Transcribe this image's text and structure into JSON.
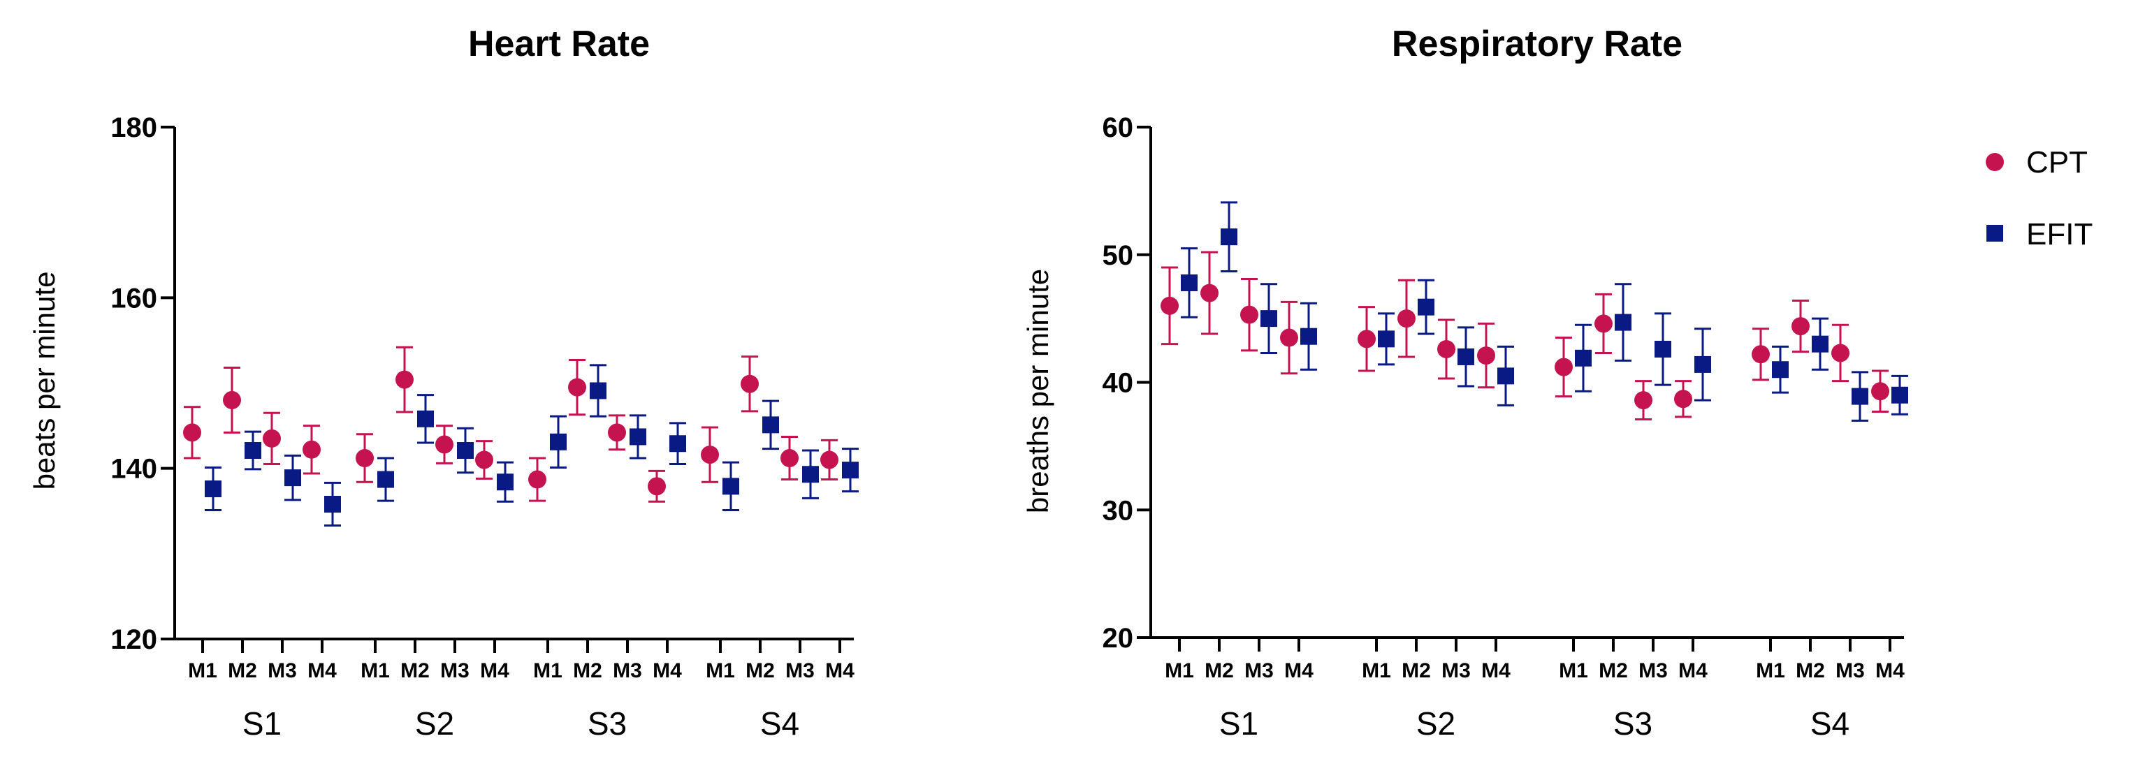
{
  "colors": {
    "CPT": "#c4134f",
    "EFIT": "#0a1a85",
    "axis": "#000000"
  },
  "legend": {
    "items": [
      {
        "name": "CPT",
        "marker": "circle"
      },
      {
        "name": "EFIT",
        "marker": "square"
      }
    ]
  },
  "chart_data": [
    {
      "type": "scatter",
      "title": "Heart Rate",
      "xlabel": "",
      "ylabel": "beats per minute",
      "ylim": [
        120,
        180
      ],
      "yticks": [
        120,
        140,
        160,
        180
      ],
      "groups": [
        "S1",
        "S2",
        "S3",
        "S4"
      ],
      "categories": [
        "M1",
        "M2",
        "M3",
        "M4"
      ],
      "error_bars": "mean ± error",
      "series": [
        {
          "name": "CPT",
          "values": [
            [
              144.2,
              148.0,
              143.5,
              142.2
            ],
            [
              141.2,
              150.4,
              142.8,
              141.0
            ],
            [
              138.7,
              149.5,
              144.2,
              137.9
            ],
            [
              141.6,
              149.9,
              141.2,
              141.0
            ]
          ],
          "errors": [
            [
              3.0,
              3.8,
              3.0,
              2.8
            ],
            [
              2.8,
              3.8,
              2.2,
              2.2
            ],
            [
              2.5,
              3.2,
              2.0,
              1.8
            ],
            [
              3.2,
              3.2,
              2.5,
              2.3
            ]
          ]
        },
        {
          "name": "EFIT",
          "values": [
            [
              137.6,
              142.1,
              138.9,
              135.8
            ],
            [
              138.7,
              145.8,
              142.1,
              138.4
            ],
            [
              143.1,
              149.1,
              143.7,
              142.9
            ],
            [
              137.9,
              145.1,
              139.3,
              139.8
            ]
          ],
          "errors": [
            [
              2.5,
              2.2,
              2.6,
              2.5
            ],
            [
              2.5,
              2.8,
              2.6,
              2.3
            ],
            [
              3.0,
              3.0,
              2.5,
              2.4
            ],
            [
              2.8,
              2.8,
              2.8,
              2.5
            ]
          ]
        }
      ]
    },
    {
      "type": "scatter",
      "title": "Respiratory Rate",
      "xlabel": "",
      "ylabel": "breaths per minute",
      "ylim": [
        20,
        60
      ],
      "yticks": [
        20,
        30,
        40,
        50,
        60
      ],
      "groups": [
        "S1",
        "S2",
        "S3",
        "S4"
      ],
      "categories": [
        "M1",
        "M2",
        "M3",
        "M4"
      ],
      "error_bars": "mean ± error",
      "series": [
        {
          "name": "CPT",
          "values": [
            [
              46.0,
              47.0,
              45.3,
              43.5
            ],
            [
              43.4,
              45.0,
              42.6,
              42.1
            ],
            [
              41.2,
              44.6,
              38.6,
              38.7
            ],
            [
              42.2,
              44.4,
              42.3,
              39.3
            ]
          ],
          "errors": [
            [
              3.0,
              3.2,
              2.8,
              2.8
            ],
            [
              2.5,
              3.0,
              2.3,
              2.5
            ],
            [
              2.3,
              2.3,
              1.5,
              1.4
            ],
            [
              2.0,
              2.0,
              2.2,
              1.6
            ]
          ]
        },
        {
          "name": "EFIT",
          "values": [
            [
              47.8,
              51.4,
              45.0,
              43.6
            ],
            [
              43.4,
              45.9,
              42.0,
              40.5
            ],
            [
              41.9,
              44.7,
              42.6,
              41.4
            ],
            [
              41.0,
              43.0,
              38.9,
              39.0
            ]
          ],
          "errors": [
            [
              2.7,
              2.7,
              2.7,
              2.6
            ],
            [
              2.0,
              2.1,
              2.3,
              2.3
            ],
            [
              2.6,
              3.0,
              2.8,
              2.8
            ],
            [
              1.8,
              2.0,
              1.9,
              1.5
            ]
          ]
        }
      ]
    }
  ]
}
